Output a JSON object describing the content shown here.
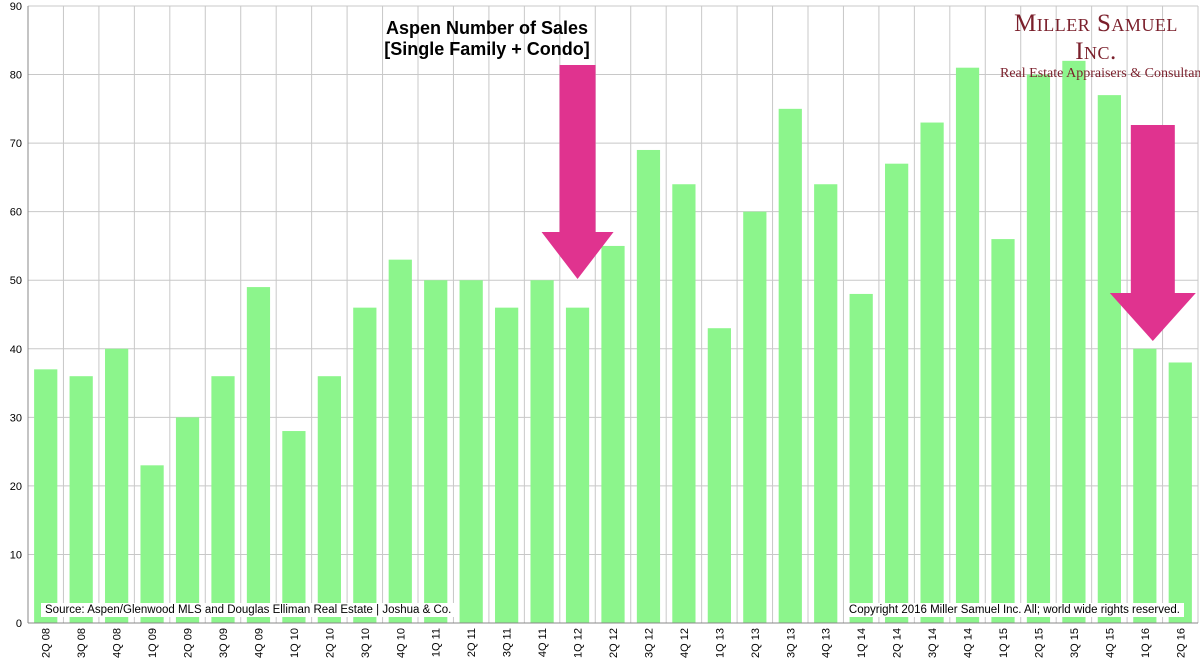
{
  "brand": {
    "name": "Miller Samuel Inc.",
    "tagline": "Real Estate Appraisers & Consultants",
    "color": "#7a1f2b"
  },
  "notes": {
    "source": "Source: Aspen/Glenwood MLS and Douglas Elliman Real Estate | Joshua & Co.",
    "copyright": "Copyright 2016 Miller Samuel Inc.  All; world wide rights reserved."
  },
  "colors": {
    "bar": "#8cf58c",
    "arrow": "#e0338f",
    "grid": "#c8c8c8"
  },
  "chart_data": {
    "type": "bar",
    "title": "Aspen Number of Sales",
    "subtitle": "[Single Family + Condo]",
    "xlabel": "",
    "ylabel": "",
    "ylim": [
      0,
      90
    ],
    "yticks": [
      0,
      10,
      20,
      30,
      40,
      50,
      60,
      70,
      80,
      90
    ],
    "grid": true,
    "legend": "none",
    "categories": [
      "2Q 08",
      "3Q 08",
      "4Q 08",
      "1Q 09",
      "2Q 09",
      "3Q 09",
      "4Q 09",
      "1Q 10",
      "2Q 10",
      "3Q 10",
      "4Q 10",
      "1Q 11",
      "2Q 11",
      "3Q 11",
      "4Q 11",
      "1Q 12",
      "2Q 12",
      "3Q 12",
      "4Q 12",
      "1Q 13",
      "2Q 13",
      "3Q 13",
      "4Q 13",
      "1Q 14",
      "2Q 14",
      "3Q 14",
      "4Q 14",
      "1Q 15",
      "2Q 15",
      "3Q 15",
      "4Q 15",
      "1Q 16",
      "2Q 16"
    ],
    "values": [
      37,
      36,
      40,
      23,
      30,
      36,
      49,
      28,
      36,
      46,
      53,
      50,
      50,
      46,
      50,
      46,
      55,
      69,
      64,
      43,
      60,
      75,
      64,
      48,
      67,
      73,
      81,
      56,
      80,
      82,
      77,
      40,
      38
    ],
    "annotations": [
      {
        "type": "down-arrow",
        "category": "1Q 12"
      },
      {
        "type": "down-arrow",
        "category": "1Q 16"
      }
    ]
  }
}
